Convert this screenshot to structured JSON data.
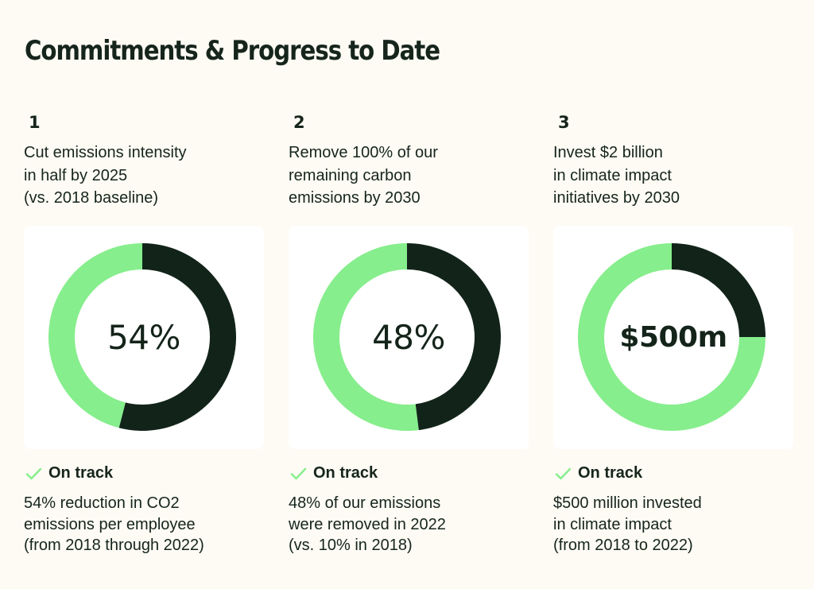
{
  "title": "Commitments & Progress to Date",
  "colors": {
    "background": "#fdfbf3",
    "text": "#16251c",
    "progress": "#12241a",
    "remaining": "#86ee8c",
    "status": "#86ee8c"
  },
  "icons": {
    "status": "check-icon"
  },
  "commitments": [
    {
      "number": "1",
      "description": "Cut emissions intensity\nin half by 2025\n(vs. 2018 baseline)",
      "center_value": "54%",
      "status": "On track",
      "note": "54% reduction in CO2\nemissions per employee\n(from 2018 through 2022)"
    },
    {
      "number": "2",
      "description": "Remove 100% of our\nremaining carbon\nemissions by 2030",
      "center_value": "48%",
      "status": "On track",
      "note": "48% of our emissions\nwere removed in 2022\n(vs. 10% in 2018)"
    },
    {
      "number": "3",
      "description": "Invest $2 billion\nin climate impact\ninitiatives by 2030",
      "center_value": "$500m",
      "status": "On track",
      "note": "$500 million invested\nin climate impact\n(from 2018 to 2022)"
    }
  ],
  "chart_data": [
    {
      "type": "pie",
      "variant": "donut",
      "slices": [
        {
          "value": 54
        },
        {
          "value": 46
        }
      ],
      "center_label": "54%"
    },
    {
      "type": "pie",
      "variant": "donut",
      "slices": [
        {
          "value": 48
        },
        {
          "value": 52
        }
      ],
      "center_label": "48%"
    },
    {
      "type": "pie",
      "variant": "donut",
      "slices": [
        {
          "value": 500
        },
        {
          "value": 1500
        }
      ],
      "center_label": "$500m"
    }
  ]
}
